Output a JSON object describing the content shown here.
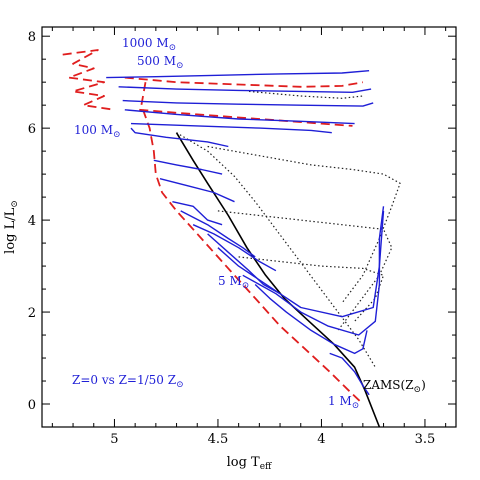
{
  "chart_data": {
    "type": "line",
    "title": "",
    "xlabel": "log T",
    "xlabel_sub": "eff",
    "ylabel": "log L/L",
    "ylabel_sub": "⊙",
    "xlim": [
      5.35,
      3.35
    ],
    "ylim": [
      -0.5,
      8.2
    ],
    "x_ticks": [
      5,
      4.5,
      4,
      3.5
    ],
    "x_tick_labels": [
      "5",
      "4.5",
      "4",
      "3.5"
    ],
    "y_ticks": [
      0,
      2,
      4,
      6,
      8
    ],
    "y_tick_labels": [
      "0",
      "2",
      "4",
      "6",
      "8"
    ],
    "colors": {
      "z0": "#1f1fd6",
      "zams_z0": "#e01e1e",
      "z_low": "#222222",
      "zams_solar": "#000000",
      "label": "#1f1fd6"
    },
    "annotations": {
      "m1000": "1000 M",
      "m500": "500 M",
      "m100": "100 M",
      "m5": "5 M",
      "m1": "1 M",
      "sun": "⊙",
      "legend": "Z=0 vs Z=1/50 Z",
      "zams_solar": "ZAMS(Z",
      "zams_solar_close": ")"
    },
    "series": [
      {
        "style": "solid-black",
        "points": [
          [
            4.7,
            5.9
          ],
          [
            4.62,
            5.3
          ],
          [
            4.55,
            4.8
          ],
          [
            4.45,
            4.1
          ],
          [
            4.36,
            3.4
          ],
          [
            4.27,
            2.8
          ],
          [
            4.18,
            2.3
          ],
          [
            4.06,
            1.8
          ],
          [
            3.94,
            1.3
          ],
          [
            3.84,
            0.8
          ],
          [
            3.79,
            0.3
          ],
          [
            3.72,
            -0.5
          ]
        ]
      },
      {
        "style": "dashed-red",
        "points": [
          [
            4.85,
            7.0
          ],
          [
            4.87,
            6.5
          ],
          [
            4.83,
            6.0
          ],
          [
            4.81,
            5.5
          ],
          [
            4.8,
            5.0
          ],
          [
            4.77,
            4.6
          ],
          [
            4.7,
            4.2
          ],
          [
            4.6,
            3.7
          ],
          [
            4.5,
            3.2
          ],
          [
            4.4,
            2.7
          ],
          [
            4.3,
            2.2
          ],
          [
            4.2,
            1.7
          ],
          [
            4.08,
            1.2
          ],
          [
            3.96,
            0.7
          ],
          [
            3.87,
            0.3
          ],
          [
            3.8,
            0.0
          ]
        ]
      },
      {
        "style": "dashed-red",
        "points": [
          [
            5.25,
            7.6
          ],
          [
            5.08,
            7.7
          ],
          [
            5.2,
            7.4
          ],
          [
            5.1,
            7.3
          ],
          [
            5.22,
            7.1
          ],
          [
            5.05,
            7.0
          ],
          [
            5.2,
            6.8
          ],
          [
            5.05,
            6.7
          ],
          [
            5.15,
            6.5
          ],
          [
            5.0,
            6.4
          ]
        ]
      },
      {
        "style": "dashed-red",
        "points": [
          [
            4.95,
            7.1
          ],
          [
            4.7,
            7.0
          ],
          [
            4.4,
            6.95
          ],
          [
            4.1,
            6.9
          ],
          [
            3.9,
            6.92
          ],
          [
            3.8,
            7.0
          ]
        ]
      },
      {
        "style": "dashed-red",
        "points": [
          [
            4.88,
            6.4
          ],
          [
            4.6,
            6.3
          ],
          [
            4.3,
            6.2
          ],
          [
            4.0,
            6.1
          ],
          [
            3.85,
            6.05
          ]
        ]
      },
      {
        "style": "dotted-black",
        "points": [
          [
            4.7,
            5.9
          ],
          [
            4.55,
            5.5
          ],
          [
            4.42,
            4.95
          ],
          [
            4.32,
            4.4
          ],
          [
            4.22,
            3.8
          ],
          [
            4.12,
            3.2
          ],
          [
            4.02,
            2.6
          ],
          [
            3.92,
            2.0
          ],
          [
            3.82,
            1.4
          ],
          [
            3.74,
            0.8
          ]
        ]
      },
      {
        "style": "dotted-black",
        "points": [
          [
            4.55,
            5.6
          ],
          [
            4.3,
            5.4
          ],
          [
            4.05,
            5.2
          ],
          [
            3.85,
            5.1
          ],
          [
            3.7,
            5.0
          ],
          [
            3.62,
            4.8
          ],
          [
            3.66,
            4.3
          ],
          [
            3.72,
            3.6
          ],
          [
            3.8,
            2.8
          ],
          [
            3.9,
            2.2
          ]
        ]
      },
      {
        "style": "dotted-black",
        "points": [
          [
            4.5,
            4.2
          ],
          [
            4.3,
            4.1
          ],
          [
            4.1,
            4.0
          ],
          [
            3.9,
            3.9
          ],
          [
            3.7,
            3.8
          ],
          [
            3.66,
            3.4
          ],
          [
            3.72,
            2.8
          ],
          [
            3.82,
            2.2
          ],
          [
            3.92,
            1.6
          ]
        ]
      },
      {
        "style": "dotted-black",
        "points": [
          [
            4.4,
            3.2
          ],
          [
            4.2,
            3.1
          ],
          [
            4.0,
            3.0
          ],
          [
            3.8,
            2.95
          ],
          [
            3.7,
            2.8
          ],
          [
            3.74,
            2.3
          ],
          [
            3.84,
            1.8
          ]
        ]
      },
      {
        "style": "dotted-black",
        "points": [
          [
            4.35,
            6.8
          ],
          [
            4.1,
            6.7
          ],
          [
            3.9,
            6.65
          ],
          [
            3.8,
            6.7
          ]
        ]
      },
      {
        "style": "solid-blue",
        "points": [
          [
            5.04,
            7.1
          ],
          [
            4.8,
            7.12
          ],
          [
            4.5,
            7.15
          ],
          [
            4.2,
            7.18
          ],
          [
            3.9,
            7.2
          ],
          [
            3.77,
            7.25
          ]
        ]
      },
      {
        "style": "solid-blue",
        "points": [
          [
            4.98,
            6.9
          ],
          [
            4.7,
            6.85
          ],
          [
            4.4,
            6.82
          ],
          [
            4.1,
            6.8
          ],
          [
            3.85,
            6.78
          ],
          [
            3.76,
            6.85
          ]
        ]
      },
      {
        "style": "solid-blue",
        "points": [
          [
            4.96,
            6.6
          ],
          [
            4.7,
            6.55
          ],
          [
            4.4,
            6.52
          ],
          [
            4.1,
            6.5
          ],
          [
            3.8,
            6.48
          ],
          [
            3.75,
            6.55
          ]
        ]
      },
      {
        "style": "solid-blue",
        "points": [
          [
            4.95,
            6.4
          ],
          [
            4.7,
            6.3
          ],
          [
            4.4,
            6.2
          ],
          [
            4.1,
            6.15
          ],
          [
            3.84,
            6.1
          ]
        ]
      },
      {
        "style": "solid-blue",
        "points": [
          [
            4.92,
            6.1
          ],
          [
            4.6,
            6.05
          ],
          [
            4.3,
            6.0
          ],
          [
            4.05,
            5.95
          ],
          [
            3.95,
            5.9
          ]
        ]
      },
      {
        "style": "solid-blue",
        "points": [
          [
            4.92,
            6.0
          ],
          [
            4.9,
            5.9
          ],
          [
            4.75,
            5.8
          ],
          [
            4.55,
            5.7
          ],
          [
            4.45,
            5.6
          ]
        ]
      },
      {
        "style": "solid-blue",
        "points": [
          [
            4.81,
            5.3
          ],
          [
            4.7,
            5.2
          ],
          [
            4.58,
            5.1
          ],
          [
            4.48,
            5.0
          ]
        ]
      },
      {
        "style": "solid-blue",
        "points": [
          [
            4.78,
            4.9
          ],
          [
            4.65,
            4.75
          ],
          [
            4.52,
            4.6
          ],
          [
            4.42,
            4.4
          ]
        ]
      },
      {
        "style": "solid-blue",
        "points": [
          [
            4.72,
            4.4
          ],
          [
            4.62,
            4.3
          ],
          [
            4.55,
            4.0
          ],
          [
            4.48,
            3.9
          ]
        ]
      },
      {
        "style": "solid-blue",
        "points": [
          [
            4.68,
            4.2
          ],
          [
            4.55,
            3.9
          ],
          [
            4.45,
            3.6
          ],
          [
            4.38,
            3.4
          ],
          [
            4.32,
            3.2
          ]
        ]
      },
      {
        "style": "solid-blue",
        "points": [
          [
            4.62,
            3.9
          ],
          [
            4.52,
            3.7
          ],
          [
            4.4,
            3.4
          ],
          [
            4.3,
            3.1
          ],
          [
            4.22,
            2.9
          ]
        ]
      },
      {
        "style": "solid-blue",
        "points": [
          [
            4.55,
            3.7
          ],
          [
            4.45,
            3.3
          ],
          [
            4.35,
            2.9
          ],
          [
            4.28,
            2.6
          ],
          [
            4.2,
            2.4
          ]
        ]
      },
      {
        "style": "solid-blue",
        "points": [
          [
            4.5,
            3.4
          ],
          [
            4.4,
            3.0
          ],
          [
            4.3,
            2.7
          ],
          [
            4.2,
            2.4
          ],
          [
            4.1,
            2.1
          ],
          [
            3.9,
            1.9
          ],
          [
            3.75,
            2.1
          ],
          [
            3.72,
            3.0
          ],
          [
            3.7,
            4.2
          ]
        ]
      },
      {
        "style": "solid-blue",
        "points": [
          [
            4.38,
            2.8
          ],
          [
            4.3,
            2.6
          ],
          [
            4.22,
            2.4
          ],
          [
            4.1,
            2.0
          ],
          [
            3.97,
            1.7
          ],
          [
            3.82,
            1.5
          ],
          [
            3.74,
            1.8
          ],
          [
            3.72,
            2.6
          ],
          [
            3.72,
            3.6
          ],
          [
            3.7,
            4.3
          ]
        ]
      },
      {
        "style": "solid-blue",
        "points": [
          [
            4.32,
            2.6
          ],
          [
            4.25,
            2.3
          ],
          [
            4.17,
            2.0
          ],
          [
            4.05,
            1.6
          ],
          [
            3.94,
            1.3
          ],
          [
            3.84,
            1.1
          ],
          [
            3.8,
            1.2
          ],
          [
            3.78,
            1.6
          ]
        ]
      },
      {
        "style": "solid-blue",
        "points": [
          [
            3.96,
            1.1
          ],
          [
            3.9,
            1.0
          ],
          [
            3.84,
            0.7
          ],
          [
            3.8,
            0.4
          ],
          [
            3.77,
            0.2
          ]
        ]
      }
    ]
  }
}
